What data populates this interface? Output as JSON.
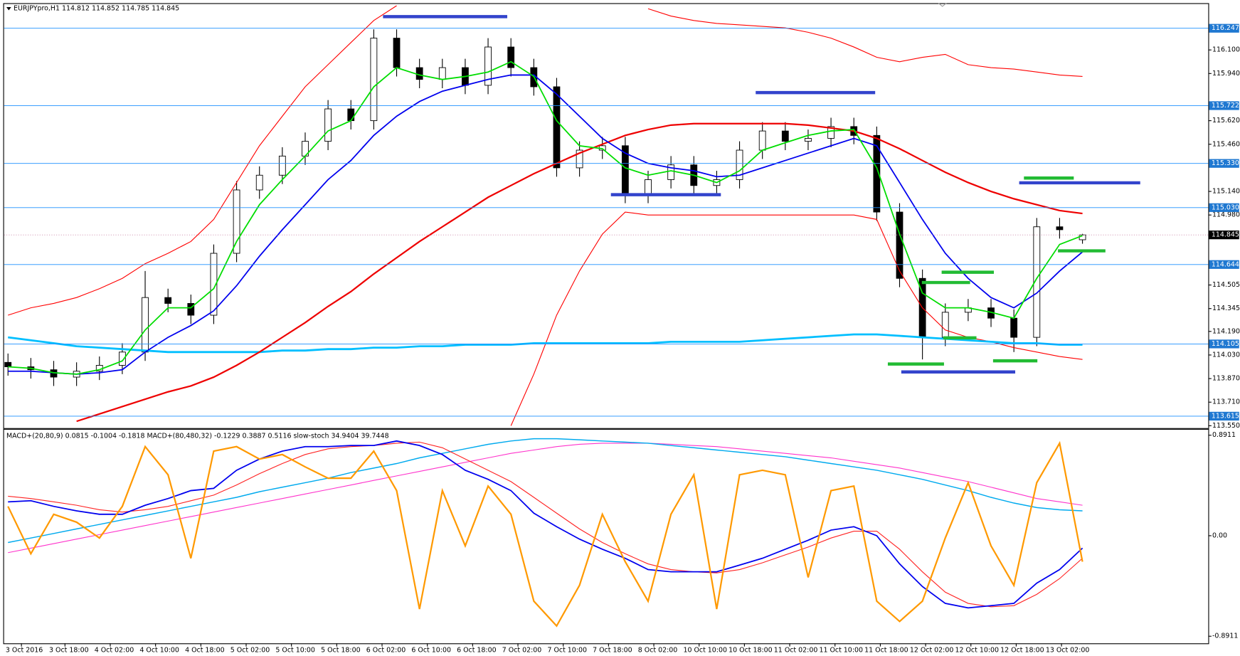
{
  "chart_data": [
    {
      "type": "candlestick",
      "title": "EURJPYpro,H1  114.812 114.852 114.785 114.845",
      "open": [
        113.98,
        113.95,
        113.93,
        113.88,
        113.92,
        113.96,
        114.05,
        114.42,
        114.38,
        114.3,
        114.72,
        115.15,
        115.25,
        115.38,
        115.48,
        115.7,
        115.62,
        116.18,
        115.98,
        115.9,
        115.98,
        115.86,
        116.12,
        115.98,
        115.85,
        115.3,
        115.42,
        115.45,
        115.12,
        115.22,
        115.32,
        115.18,
        115.22,
        115.42,
        115.55,
        115.48,
        115.5,
        115.58,
        115.52,
        115.0,
        114.55,
        114.15,
        114.32,
        114.35,
        114.28,
        114.15,
        114.9,
        114.812
      ],
      "high": [
        114.04,
        114.01,
        113.99,
        113.98,
        114.02,
        114.11,
        114.6,
        114.48,
        114.44,
        114.78,
        115.21,
        115.31,
        115.44,
        115.54,
        115.76,
        115.76,
        116.24,
        116.24,
        116.04,
        116.04,
        116.04,
        116.18,
        116.18,
        116.04,
        115.91,
        115.48,
        115.51,
        115.51,
        115.28,
        115.38,
        115.38,
        115.28,
        115.48,
        115.61,
        115.61,
        115.56,
        115.64,
        115.64,
        115.58,
        115.06,
        114.61,
        114.38,
        114.41,
        114.41,
        114.34,
        114.96,
        114.96,
        114.852
      ],
      "low": [
        113.89,
        113.87,
        113.82,
        113.82,
        113.86,
        113.9,
        113.99,
        114.32,
        114.24,
        114.24,
        114.66,
        115.09,
        115.19,
        115.32,
        115.42,
        115.56,
        115.56,
        115.92,
        115.84,
        115.84,
        115.8,
        115.8,
        115.92,
        115.79,
        115.24,
        115.24,
        115.36,
        115.06,
        115.06,
        115.16,
        115.12,
        115.12,
        115.16,
        115.36,
        115.42,
        115.42,
        115.44,
        115.46,
        114.94,
        114.49,
        114.0,
        114.09,
        114.26,
        114.22,
        114.05,
        114.09,
        114.82,
        114.785
      ],
      "close": [
        113.95,
        113.93,
        113.88,
        113.92,
        113.96,
        114.05,
        114.42,
        114.38,
        114.3,
        114.72,
        115.15,
        115.25,
        115.38,
        115.48,
        115.7,
        115.62,
        116.18,
        115.98,
        115.9,
        115.98,
        115.86,
        116.12,
        115.98,
        115.85,
        115.3,
        115.42,
        115.45,
        115.12,
        115.22,
        115.32,
        115.18,
        115.22,
        115.42,
        115.55,
        115.48,
        115.5,
        115.58,
        115.52,
        115.0,
        114.55,
        114.15,
        114.32,
        114.35,
        114.28,
        114.15,
        114.9,
        114.88,
        114.845
      ],
      "series": [
        {
          "color": "#ff0000",
          "width": 1,
          "values": [
            114.3,
            114.35,
            114.38,
            114.42,
            114.48,
            114.55,
            114.65,
            114.72,
            114.8,
            114.95,
            115.2,
            115.45,
            115.65,
            115.85,
            116.0,
            116.15,
            116.3,
            116.4,
            null,
            null,
            null,
            null,
            null,
            null,
            null,
            null,
            null,
            null,
            116.38,
            116.33,
            116.3,
            116.28,
            116.27,
            116.26,
            116.25,
            116.22,
            116.18,
            116.12,
            116.05,
            116.02,
            116.05,
            116.07,
            116.0,
            115.98,
            115.97,
            115.95,
            115.93,
            115.92
          ]
        },
        {
          "color": "#ff0000",
          "width": 1,
          "values": [
            null,
            null,
            null,
            null,
            null,
            null,
            null,
            null,
            null,
            null,
            null,
            null,
            null,
            null,
            null,
            null,
            null,
            null,
            null,
            null,
            null,
            null,
            113.55,
            113.9,
            114.3,
            114.6,
            114.85,
            115.0,
            114.98,
            114.98,
            114.98,
            114.98,
            114.98,
            114.98,
            114.98,
            114.98,
            114.98,
            114.98,
            114.95,
            114.6,
            114.35,
            114.2,
            114.15,
            114.12,
            114.08,
            114.05,
            114.02,
            114.0
          ]
        },
        {
          "color": "#00bfff",
          "width": 2.5,
          "values": [
            114.15,
            114.13,
            114.11,
            114.09,
            114.08,
            114.07,
            114.06,
            114.05,
            114.05,
            114.05,
            114.05,
            114.05,
            114.06,
            114.06,
            114.07,
            114.07,
            114.08,
            114.08,
            114.09,
            114.09,
            114.1,
            114.1,
            114.1,
            114.11,
            114.11,
            114.11,
            114.11,
            114.11,
            114.11,
            114.12,
            114.12,
            114.12,
            114.12,
            114.13,
            114.14,
            114.15,
            114.16,
            114.17,
            114.17,
            114.16,
            114.15,
            114.14,
            114.13,
            114.12,
            114.11,
            114.11,
            114.1,
            114.1
          ]
        },
        {
          "color": "#ee0000",
          "width": 2,
          "values": [
            null,
            null,
            null,
            113.58,
            113.63,
            113.68,
            113.73,
            113.78,
            113.82,
            113.88,
            113.96,
            114.05,
            114.15,
            114.25,
            114.36,
            114.46,
            114.58,
            114.69,
            114.8,
            114.9,
            115.0,
            115.1,
            115.18,
            115.26,
            115.33,
            115.4,
            115.46,
            115.52,
            115.56,
            115.59,
            115.6,
            115.6,
            115.6,
            115.6,
            115.6,
            115.59,
            115.57,
            115.55,
            115.5,
            115.43,
            115.35,
            115.27,
            115.2,
            115.14,
            115.09,
            115.05,
            115.01,
            114.99
          ]
        },
        {
          "color": "#0000ee",
          "width": 1.6,
          "values": [
            113.92,
            113.92,
            113.91,
            113.9,
            113.91,
            113.93,
            114.05,
            114.15,
            114.23,
            114.33,
            114.5,
            114.7,
            114.88,
            115.05,
            115.22,
            115.35,
            115.52,
            115.65,
            115.75,
            115.82,
            115.86,
            115.9,
            115.93,
            115.93,
            115.8,
            115.65,
            115.5,
            115.4,
            115.33,
            115.3,
            115.28,
            115.24,
            115.25,
            115.3,
            115.35,
            115.4,
            115.45,
            115.5,
            115.45,
            115.2,
            114.95,
            114.72,
            114.55,
            114.42,
            114.35,
            114.45,
            114.6,
            114.73
          ]
        },
        {
          "color": "#00dd00",
          "width": 1.6,
          "values": [
            113.95,
            113.94,
            113.91,
            113.9,
            113.93,
            113.99,
            114.2,
            114.35,
            114.35,
            114.48,
            114.8,
            115.05,
            115.22,
            115.38,
            115.55,
            115.62,
            115.85,
            115.98,
            115.93,
            115.9,
            115.92,
            115.95,
            116.02,
            115.92,
            115.62,
            115.45,
            115.43,
            115.3,
            115.25,
            115.28,
            115.25,
            115.2,
            115.28,
            115.42,
            115.47,
            115.52,
            115.55,
            115.56,
            115.3,
            114.85,
            114.45,
            114.35,
            114.35,
            114.32,
            114.28,
            114.55,
            114.78,
            114.84
          ]
        }
      ],
      "levels": [
        116.247,
        115.722,
        115.33,
        115.03,
        114.644,
        114.105,
        113.615
      ],
      "level_labels": [
        "116.247",
        "115.722",
        "115.330",
        "115.030",
        "114.644",
        "114.105",
        "113.615"
      ],
      "bid": {
        "value": 114.845,
        "label": "114.845"
      },
      "ylim": [
        113.534,
        116.412
      ],
      "yticks": [
        {
          "value": 116.1,
          "label": "116.100"
        },
        {
          "value": 115.94,
          "label": "115.940"
        },
        {
          "value": 115.62,
          "label": "115.620"
        },
        {
          "value": 115.46,
          "label": "115.460"
        },
        {
          "value": 115.14,
          "label": "115.140"
        },
        {
          "value": 114.98,
          "label": "114.980"
        },
        {
          "value": 114.505,
          "label": "114.505"
        },
        {
          "value": 114.345,
          "label": "114.345"
        },
        {
          "value": 114.19,
          "label": "114.190"
        },
        {
          "value": 114.03,
          "label": "114.030"
        },
        {
          "value": 113.87,
          "label": "113.870"
        },
        {
          "value": 113.71,
          "label": "113.710"
        },
        {
          "value": 113.55,
          "label": "113.550"
        }
      ]
    },
    {
      "type": "line",
      "title": "MACD+(20,80,9) 0.0815 -0.1004 -0.1818  MACD+(80,480,32) -0.1229 0.3887 0.5116  slow-stoch 34.9404 39.7448",
      "series": [
        {
          "color": "#ff33cc",
          "width": 1,
          "values": [
            -0.15,
            -0.11,
            -0.07,
            -0.03,
            0.01,
            0.05,
            0.09,
            0.13,
            0.17,
            0.21,
            0.25,
            0.29,
            0.33,
            0.37,
            0.41,
            0.45,
            0.49,
            0.53,
            0.57,
            0.61,
            0.65,
            0.69,
            0.73,
            0.76,
            0.79,
            0.81,
            0.82,
            0.82,
            0.82,
            0.81,
            0.8,
            0.79,
            0.77,
            0.75,
            0.73,
            0.71,
            0.69,
            0.66,
            0.63,
            0.6,
            0.56,
            0.52,
            0.48,
            0.43,
            0.38,
            0.33,
            0.3,
            0.27
          ]
        },
        {
          "color": "#00aaee",
          "width": 1.3,
          "values": [
            -0.06,
            -0.02,
            0.02,
            0.06,
            0.1,
            0.14,
            0.18,
            0.22,
            0.26,
            0.3,
            0.34,
            0.39,
            0.43,
            0.47,
            0.51,
            0.56,
            0.6,
            0.64,
            0.69,
            0.73,
            0.77,
            0.81,
            0.84,
            0.86,
            0.86,
            0.85,
            0.84,
            0.83,
            0.82,
            0.8,
            0.78,
            0.76,
            0.74,
            0.72,
            0.7,
            0.67,
            0.64,
            0.61,
            0.58,
            0.54,
            0.5,
            0.45,
            0.4,
            0.34,
            0.29,
            0.25,
            0.23,
            0.22
          ]
        },
        {
          "color": "#ff2222",
          "width": 1,
          "values": [
            0.35,
            0.33,
            0.3,
            0.27,
            0.23,
            0.21,
            0.23,
            0.26,
            0.31,
            0.36,
            0.45,
            0.55,
            0.64,
            0.72,
            0.77,
            0.79,
            0.8,
            0.82,
            0.83,
            0.78,
            0.68,
            0.58,
            0.48,
            0.34,
            0.2,
            0.06,
            -0.06,
            -0.16,
            -0.25,
            -0.3,
            -0.32,
            -0.33,
            -0.3,
            -0.24,
            -0.17,
            -0.1,
            -0.02,
            0.04,
            0.04,
            -0.12,
            -0.32,
            -0.5,
            -0.6,
            -0.63,
            -0.62,
            -0.52,
            -0.38,
            -0.2
          ]
        },
        {
          "color": "#0000ee",
          "width": 1.6,
          "values": [
            0.3,
            0.31,
            0.26,
            0.22,
            0.19,
            0.19,
            0.27,
            0.33,
            0.4,
            0.42,
            0.58,
            0.68,
            0.75,
            0.79,
            0.79,
            0.8,
            0.8,
            0.84,
            0.8,
            0.72,
            0.58,
            0.5,
            0.4,
            0.2,
            0.08,
            -0.03,
            -0.12,
            -0.2,
            -0.3,
            -0.32,
            -0.32,
            -0.32,
            -0.26,
            -0.2,
            -0.12,
            -0.04,
            0.05,
            0.08,
            0.0,
            -0.25,
            -0.45,
            -0.6,
            -0.64,
            -0.62,
            -0.6,
            -0.42,
            -0.3,
            -0.11
          ]
        },
        {
          "color": "#ff9900",
          "width": 2,
          "values": [
            0.26,
            -0.16,
            0.19,
            0.12,
            -0.02,
            0.26,
            0.79,
            0.54,
            -0.2,
            0.75,
            0.79,
            0.68,
            0.72,
            0.61,
            0.51,
            0.51,
            0.75,
            0.4,
            -0.65,
            0.4,
            -0.09,
            0.44,
            0.19,
            -0.58,
            -0.8,
            -0.44,
            0.19,
            -0.23,
            -0.58,
            0.19,
            0.54,
            -0.65,
            0.54,
            0.58,
            0.54,
            -0.37,
            0.4,
            0.44,
            -0.58,
            -0.76,
            -0.58,
            -0.02,
            0.47,
            -0.09,
            -0.44,
            0.47,
            0.82,
            -0.23
          ]
        }
      ],
      "ylim": [
        -0.954,
        0.94
      ],
      "yticks": [
        0.8911,
        {
          "value": 0,
          "label": "0.00"
        },
        -0.8911
      ],
      "x_axis_labels": [
        "3 Oct 2016",
        "3 Oct 18:00",
        "4 Oct 02:00",
        "4 Oct 10:00",
        "4 Oct 18:00",
        "5 Oct 02:00",
        "5 Oct 10:00",
        "5 Oct 18:00",
        "6 Oct 02:00",
        "6 Oct 10:00",
        "6 Oct 18:00",
        "7 Oct 02:00",
        "7 Oct 10:00",
        "7 Oct 18:00",
        "8 Oct 02:00",
        "10 Oct 10:00",
        "10 Oct 18:00",
        "11 Oct 02:00",
        "11 Oct 10:00",
        "11 Oct 18:00",
        "12 Oct 02:00",
        "12 Oct 10:00",
        "12 Oct 18:00",
        "13 Oct 02:00"
      ]
    }
  ]
}
